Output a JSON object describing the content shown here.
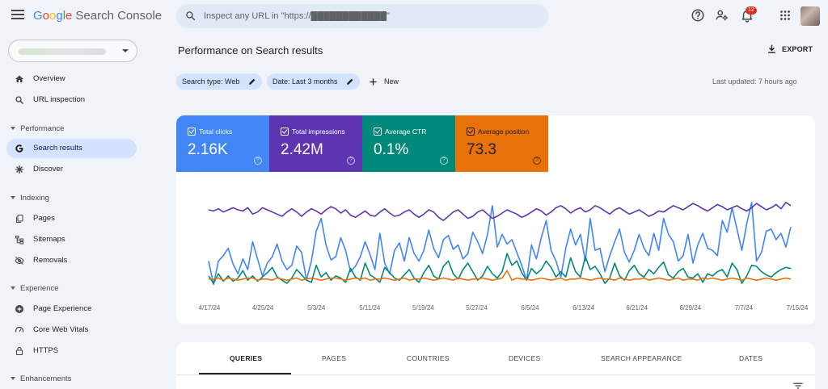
{
  "app": {
    "title_parts": [
      "G",
      "o",
      "o",
      "g",
      "l",
      "e"
    ],
    "product": "Search Console"
  },
  "search": {
    "placeholder": "Inspect any URL in \"https://████████████\""
  },
  "notifications": {
    "count": "12"
  },
  "sidebar": {
    "items": [
      {
        "label": "Overview"
      },
      {
        "label": "URL inspection"
      },
      {
        "label": "Search results"
      },
      {
        "label": "Discover"
      },
      {
        "label": "Pages"
      },
      {
        "label": "Sitemaps"
      },
      {
        "label": "Removals"
      },
      {
        "label": "Page Experience"
      },
      {
        "label": "Core Web Vitals"
      },
      {
        "label": "HTTPS"
      }
    ],
    "sections": [
      {
        "label": "Performance"
      },
      {
        "label": "Indexing"
      },
      {
        "label": "Experience"
      },
      {
        "label": "Enhancements"
      }
    ]
  },
  "main": {
    "title": "Performance on Search results",
    "export_label": "EXPORT",
    "filters": [
      {
        "label": "Search type: Web"
      },
      {
        "label": "Date: Last 3 months"
      }
    ],
    "new_label": "New",
    "last_updated": "Last updated: 7 hours ago"
  },
  "metrics": [
    {
      "label": "Total clicks",
      "value": "2.16K",
      "color": "#4285f4"
    },
    {
      "label": "Total impressions",
      "value": "2.42M",
      "color": "#5e35b1"
    },
    {
      "label": "Average CTR",
      "value": "0.1%",
      "color": "#00897b"
    },
    {
      "label": "Average position",
      "value": "73.3",
      "color": "#e8710a"
    }
  ],
  "chart_data": {
    "type": "line",
    "x_ticks": [
      "4/17/24",
      "4/25/24",
      "5/3/24",
      "5/11/24",
      "5/19/24",
      "5/27/24",
      "6/5/24",
      "6/13/24",
      "6/21/24",
      "6/29/24",
      "7/7/24",
      "7/15/24"
    ],
    "y_axis_visible": false,
    "grid": false,
    "series": [
      {
        "name": "Total clicks",
        "color": "#4285f4",
        "values": [
          0.3,
          0.08,
          0.3,
          0.35,
          0.42,
          0.27,
          0.18,
          0.32,
          0.22,
          0.48,
          0.32,
          0.16,
          0.28,
          0.34,
          0.46,
          0.3,
          0.22,
          0.26,
          0.44,
          0.38,
          0.12,
          0.3,
          0.58,
          0.7,
          0.45,
          0.31,
          0.34,
          0.52,
          0.4,
          0.2,
          0.25,
          0.34,
          0.48,
          0.36,
          0.22,
          0.56,
          0.28,
          0.18,
          0.4,
          0.47,
          0.3,
          0.52,
          0.37,
          0.3,
          0.4,
          0.59,
          0.42,
          0.33,
          0.5,
          0.54,
          0.41,
          0.45,
          0.32,
          0.37,
          0.57,
          0.48,
          0.37,
          0.55,
          0.82,
          0.43,
          0.55,
          0.46,
          0.5,
          0.38,
          0.26,
          0.12,
          0.45,
          0.32,
          0.52,
          0.68,
          0.4,
          0.3,
          0.15,
          0.42,
          0.6,
          0.45,
          0.55,
          0.3,
          0.7,
          0.4,
          0.42,
          0.2,
          0.35,
          0.48,
          0.6,
          0.38,
          0.29,
          0.4,
          0.55,
          0.42,
          0.35,
          0.56,
          0.4,
          0.7,
          0.55,
          0.48,
          0.3,
          0.35,
          0.55,
          0.28,
          0.45,
          0.56,
          0.42,
          0.4,
          0.35,
          0.68,
          0.57,
          0.8,
          0.6,
          0.4,
          0.65,
          0.85,
          0.3,
          0.38,
          0.58,
          0.6,
          0.5,
          0.56,
          0.43,
          0.62
        ]
      },
      {
        "name": "Total impressions",
        "color": "#5e35b1",
        "values": [
          0.78,
          0.77,
          0.79,
          0.76,
          0.78,
          0.8,
          0.78,
          0.77,
          0.8,
          0.74,
          0.76,
          0.8,
          0.78,
          0.76,
          0.74,
          0.72,
          0.76,
          0.79,
          0.76,
          0.72,
          0.76,
          0.79,
          0.77,
          0.74,
          0.78,
          0.81,
          0.79,
          0.75,
          0.78,
          0.73,
          0.71,
          0.74,
          0.77,
          0.73,
          0.72,
          0.76,
          0.79,
          0.75,
          0.72,
          0.73,
          0.76,
          0.78,
          0.74,
          0.71,
          0.74,
          0.78,
          0.76,
          0.71,
          0.68,
          0.72,
          0.76,
          0.78,
          0.74,
          0.7,
          0.72,
          0.76,
          0.78,
          0.74,
          0.7,
          0.72,
          0.75,
          0.78,
          0.76,
          0.74,
          0.71,
          0.73,
          0.76,
          0.79,
          0.77,
          0.73,
          0.76,
          0.8,
          0.82,
          0.79,
          0.75,
          0.78,
          0.8,
          0.76,
          0.78,
          0.82,
          0.8,
          0.77,
          0.74,
          0.78,
          0.8,
          0.77,
          0.74,
          0.76,
          0.78,
          0.75,
          0.72,
          0.74,
          0.77,
          0.76,
          0.79,
          0.82,
          0.8,
          0.78,
          0.81,
          0.84,
          0.82,
          0.79,
          0.77,
          0.8,
          0.83,
          0.81,
          0.78,
          0.8,
          0.82,
          0.79,
          0.77,
          0.8,
          0.84,
          0.81,
          0.78,
          0.8,
          0.83,
          0.79,
          0.85,
          0.82
        ]
      },
      {
        "name": "Average CTR",
        "color": "#00897b",
        "values": [
          0.16,
          0.09,
          0.18,
          0.11,
          0.16,
          0.11,
          0.14,
          0.21,
          0.12,
          0.16,
          0.11,
          0.15,
          0.19,
          0.24,
          0.15,
          0.12,
          0.09,
          0.14,
          0.22,
          0.17,
          0.12,
          0.1,
          0.26,
          0.15,
          0.19,
          0.12,
          0.16,
          0.14,
          0.1,
          0.23,
          0.15,
          0.12,
          0.28,
          0.17,
          0.14,
          0.1,
          0.24,
          0.19,
          0.14,
          0.12,
          0.17,
          0.22,
          0.14,
          0.1,
          0.19,
          0.26,
          0.16,
          0.13,
          0.25,
          0.3,
          0.18,
          0.13,
          0.22,
          0.28,
          0.2,
          0.12,
          0.16,
          0.25,
          0.18,
          0.14,
          0.2,
          0.37,
          0.26,
          0.3,
          0.19,
          0.12,
          0.23,
          0.18,
          0.22,
          0.3,
          0.24,
          0.15,
          0.2,
          0.15,
          0.33,
          0.2,
          0.15,
          0.34,
          0.22,
          0.25,
          0.18,
          0.09,
          0.14,
          0.28,
          0.16,
          0.12,
          0.21,
          0.26,
          0.18,
          0.15,
          0.22,
          0.18,
          0.24,
          0.29,
          0.17,
          0.14,
          0.2,
          0.23,
          0.15,
          0.14,
          0.18,
          0.1,
          0.18,
          0.16,
          0.2,
          0.22,
          0.15,
          0.28,
          0.22,
          0.09,
          0.16,
          0.26,
          0.25,
          0.2,
          0.17,
          0.15,
          0.19,
          0.22,
          0.24,
          0.23
        ]
      },
      {
        "name": "Average position",
        "color": "#e8710a",
        "values": [
          0.13,
          0.13,
          0.14,
          0.12,
          0.14,
          0.13,
          0.12,
          0.13,
          0.14,
          0.14,
          0.12,
          0.13,
          0.13,
          0.12,
          0.14,
          0.13,
          0.12,
          0.13,
          0.14,
          0.12,
          0.13,
          0.14,
          0.13,
          0.12,
          0.13,
          0.14,
          0.14,
          0.13,
          0.12,
          0.13,
          0.14,
          0.13,
          0.14,
          0.12,
          0.13,
          0.13,
          0.14,
          0.13,
          0.12,
          0.13,
          0.14,
          0.12,
          0.13,
          0.13,
          0.14,
          0.13,
          0.12,
          0.13,
          0.14,
          0.13,
          0.12,
          0.14,
          0.13,
          0.12,
          0.13,
          0.13,
          0.14,
          0.13,
          0.12,
          0.13,
          0.14,
          0.21,
          0.12,
          0.14,
          0.13,
          0.13,
          0.12,
          0.13,
          0.14,
          0.13,
          0.12,
          0.13,
          0.14,
          0.12,
          0.13,
          0.13,
          0.14,
          0.13,
          0.12,
          0.13,
          0.14,
          0.13,
          0.13,
          0.12,
          0.14,
          0.13,
          0.12,
          0.13,
          0.13,
          0.14,
          0.12,
          0.13,
          0.14,
          0.13,
          0.12,
          0.13,
          0.14,
          0.12,
          0.13,
          0.13,
          0.12,
          0.14,
          0.13,
          0.14,
          0.13,
          0.12,
          0.13,
          0.14,
          0.13,
          0.12,
          0.14,
          0.13,
          0.12,
          0.13,
          0.14,
          0.13,
          0.12,
          0.13,
          0.14,
          0.13
        ]
      }
    ]
  },
  "tabs": [
    {
      "label": "QUERIES"
    },
    {
      "label": "PAGES"
    },
    {
      "label": "COUNTRIES"
    },
    {
      "label": "DEVICES"
    },
    {
      "label": "SEARCH APPEARANCE"
    },
    {
      "label": "DATES"
    }
  ]
}
